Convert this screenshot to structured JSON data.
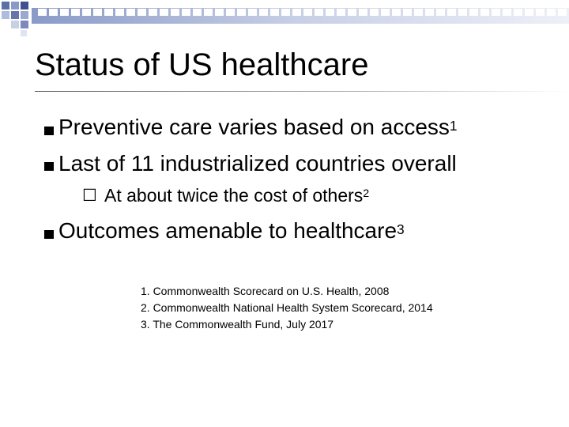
{
  "slide": {
    "title": "Status of US healthcare",
    "bullets": [
      {
        "text": "Preventive care varies based on access",
        "sup": "1"
      },
      {
        "text": "Last of 11 industrialized countries overall",
        "sup": ""
      }
    ],
    "sub_bullet": {
      "marker": "☐",
      "text": "At about twice the cost of others",
      "sup": "2"
    },
    "bullet3": {
      "text": "Outcomes amenable to healthcare",
      "sup": "3"
    },
    "references": [
      "1. Commonwealth Scorecard on U.S. Health, 2008",
      "2. Commonwealth National Health System Scorecard, 2014",
      "3. The Commonwealth Fund, July 2017"
    ]
  }
}
